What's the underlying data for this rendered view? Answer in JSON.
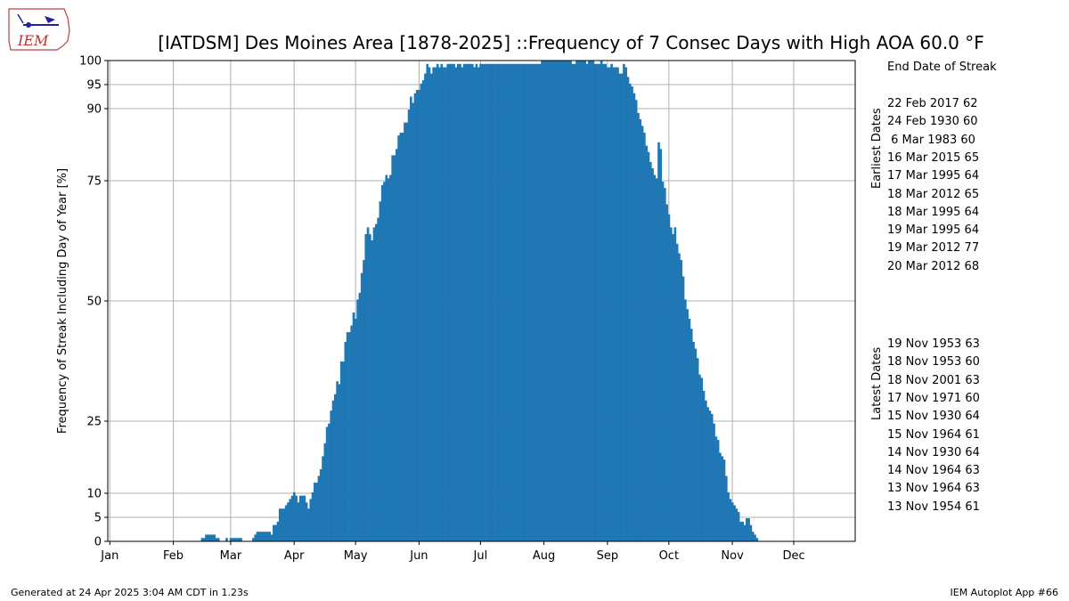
{
  "logo": {
    "text": "IEM"
  },
  "chart_data": {
    "type": "bar",
    "title": "[IATDSM] Des Moines Area [1878-2025] ::Frequency of 7 Consec Days with High AOA 60.0 °F",
    "ylabel": "Frequency of Streak Including Day of Year [%]",
    "xlabel": "",
    "ylim": [
      0,
      100
    ],
    "xlim": [
      0,
      365
    ],
    "yticks": [
      0,
      5,
      10,
      25,
      50,
      75,
      90,
      95,
      100
    ],
    "xtick_labels": [
      {
        "day": 1,
        "label": "Jan"
      },
      {
        "day": 32,
        "label": "Feb"
      },
      {
        "day": 60,
        "label": "Mar"
      },
      {
        "day": 91,
        "label": "Apr"
      },
      {
        "day": 121,
        "label": "May"
      },
      {
        "day": 152,
        "label": "Jun"
      },
      {
        "day": 182,
        "label": "Jul"
      },
      {
        "day": 213,
        "label": "Aug"
      },
      {
        "day": 244,
        "label": "Sep"
      },
      {
        "day": 274,
        "label": "Oct"
      },
      {
        "day": 305,
        "label": "Nov"
      },
      {
        "day": 335,
        "label": "Dec"
      }
    ],
    "grid": true,
    "bar_color": "#1f77b4",
    "series": [
      {
        "values": [
          0,
          0,
          0,
          0,
          0,
          0,
          0,
          0,
          0,
          0,
          0,
          0,
          0,
          0,
          0,
          0,
          0,
          0,
          0,
          0,
          0,
          0,
          0,
          0,
          0,
          0,
          0,
          0,
          0,
          0,
          0,
          0,
          0,
          0,
          0,
          0,
          0,
          0,
          0,
          0,
          0,
          0,
          0,
          0,
          0,
          0.7,
          0.7,
          1.4,
          1.4,
          1.4,
          1.4,
          1.4,
          0.7,
          0.7,
          0,
          0,
          0,
          0.7,
          0,
          0.7,
          0.7,
          0.7,
          0.7,
          0.7,
          0.7,
          0,
          0,
          0,
          0,
          0,
          0.7,
          1.4,
          2.0,
          2.0,
          2.0,
          2.0,
          2.0,
          2.0,
          2.0,
          1.4,
          3.4,
          3.4,
          4.1,
          6.8,
          6.8,
          6.8,
          7.5,
          8.1,
          8.8,
          9.5,
          10.2,
          9.5,
          8.1,
          9.5,
          9.5,
          9.5,
          8.1,
          6.8,
          8.8,
          10.2,
          12.2,
          12.2,
          13.6,
          15.0,
          17.7,
          20.4,
          23.8,
          24.5,
          27.2,
          29.3,
          30.6,
          33.3,
          32.7,
          37.4,
          37.4,
          41.5,
          43.5,
          43.5,
          44.9,
          47.6,
          46.3,
          50.3,
          51.7,
          55.8,
          58.5,
          63.9,
          65.3,
          63.9,
          62.6,
          65.3,
          66.0,
          67.3,
          70.7,
          74.1,
          74.8,
          76.2,
          75.5,
          76.2,
          80.3,
          80.3,
          81.6,
          84.4,
          85.0,
          85.0,
          87.1,
          87.1,
          89.8,
          92.5,
          91.2,
          93.2,
          93.9,
          93.9,
          95.2,
          95.9,
          97.3,
          99.3,
          98.6,
          97.3,
          98.6,
          98.6,
          99.3,
          98.6,
          99.3,
          98.6,
          98.6,
          99.3,
          99.3,
          99.3,
          99.3,
          98.6,
          99.3,
          99.3,
          98.6,
          99.3,
          99.3,
          99.3,
          99.3,
          99.3,
          98.6,
          99.3,
          98.6,
          99.3,
          99.3,
          99.3,
          99.3,
          99.3,
          99.3,
          99.3,
          99.3,
          99.3,
          99.3,
          99.3,
          99.3,
          99.3,
          99.3,
          99.3,
          99.3,
          99.3,
          99.3,
          99.3,
          99.3,
          99.3,
          99.3,
          99.3,
          99.3,
          99.3,
          99.3,
          99.3,
          99.3,
          99.3,
          99.3,
          100,
          100,
          100,
          100,
          100,
          100,
          100,
          100,
          100,
          100,
          100,
          100,
          100,
          100,
          100,
          99.3,
          99.3,
          100,
          100,
          100,
          100,
          100,
          99.3,
          100,
          100,
          100,
          99.3,
          99.3,
          99.3,
          100,
          99.3,
          99.3,
          98.6,
          98.6,
          99.3,
          98.6,
          98.6,
          98.6,
          97.3,
          97.3,
          99.3,
          98.6,
          96.6,
          95.2,
          94.6,
          93.2,
          91.8,
          89.1,
          87.8,
          86.4,
          85.0,
          82.3,
          81.0,
          78.9,
          77.6,
          76.2,
          75.5,
          83.0,
          81.6,
          74.8,
          73.5,
          70.1,
          68.0,
          65.3,
          63.9,
          65.3,
          61.9,
          59.9,
          58.5,
          55.1,
          50.3,
          48.3,
          46.3,
          44.2,
          41.5,
          40.1,
          38.1,
          34.7,
          34.0,
          31.3,
          29.3,
          27.9,
          27.2,
          26.5,
          24.5,
          21.8,
          21.1,
          18.4,
          17.7,
          17.0,
          13.6,
          10.2,
          8.8,
          8.1,
          7.5,
          6.8,
          6.1,
          4.1,
          4.1,
          3.4,
          4.8,
          4.8,
          3.4,
          2.0,
          1.4,
          0.7,
          0,
          0,
          0,
          0,
          0,
          0,
          0,
          0,
          0,
          0,
          0,
          0,
          0,
          0,
          0,
          0,
          0,
          0,
          0,
          0,
          0,
          0,
          0,
          0,
          0,
          0,
          0,
          0,
          0,
          0,
          0,
          0,
          0,
          0,
          0,
          0,
          0,
          0,
          0,
          0,
          0,
          0,
          0,
          0,
          0,
          0,
          0,
          0
        ]
      }
    ]
  },
  "side_panel": {
    "header": "End Date of Streak",
    "earliest_label": "Earliest Dates",
    "latest_label": "Latest Dates",
    "earliest": [
      "22 Feb 2017 62",
      "24 Feb 1930 60",
      " 6 Mar 1983 60",
      "16 Mar 2015 65",
      "17 Mar 1995 64",
      "18 Mar 2012 65",
      "18 Mar 1995 64",
      "19 Mar 1995 64",
      "19 Mar 2012 77",
      "20 Mar 2012 68"
    ],
    "latest": [
      "19 Nov 1953 63",
      "18 Nov 1953 60",
      "18 Nov 2001 63",
      "17 Nov 1971 60",
      "15 Nov 1930 64",
      "15 Nov 1964 61",
      "14 Nov 1930 64",
      "14 Nov 1964 63",
      "13 Nov 1964 63",
      "13 Nov 1954 61"
    ]
  },
  "footer": {
    "left": "Generated at 24 Apr 2025 3:04 AM CDT in 1.23s",
    "right": "IEM Autoplot App #66"
  }
}
